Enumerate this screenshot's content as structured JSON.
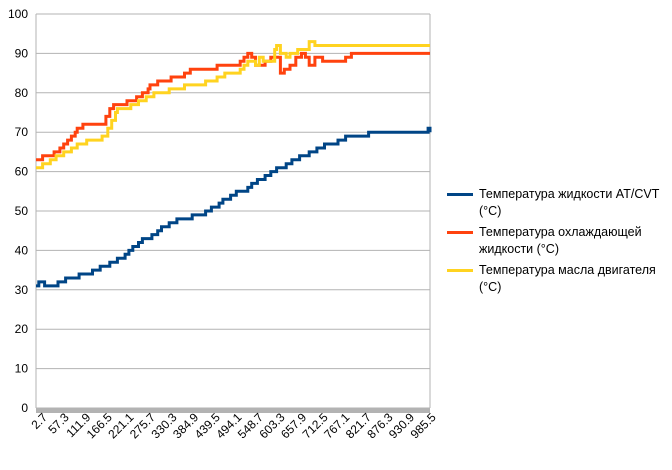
{
  "chart_data": {
    "type": "line",
    "title": "",
    "xlabel": "",
    "ylabel": "",
    "ylim": [
      0,
      100
    ],
    "y_ticks": [
      0,
      10,
      20,
      30,
      40,
      50,
      60,
      70,
      80,
      90,
      100
    ],
    "x_tick_labels": [
      "2.7",
      "57.3",
      "111.9",
      "166.5",
      "221.1",
      "275.7",
      "330.3",
      "384.9",
      "439.5",
      "494.1",
      "548.7",
      "603.3",
      "657.9",
      "712.5",
      "767.1",
      "821.7",
      "876.3",
      "930.9",
      "985.5"
    ],
    "xlim": [
      2.7,
      1030
    ],
    "grid": "horizontal",
    "legend_position": "right",
    "series": [
      {
        "name": "Температура жидкости AT/CVT (°C)",
        "color": "#004586",
        "points": [
          [
            2.7,
            31
          ],
          [
            10,
            32
          ],
          [
            25,
            31
          ],
          [
            60,
            32
          ],
          [
            80,
            33
          ],
          [
            115,
            34
          ],
          [
            150,
            35
          ],
          [
            170,
            36
          ],
          [
            195,
            37
          ],
          [
            215,
            38
          ],
          [
            235,
            39
          ],
          [
            245,
            40
          ],
          [
            255,
            41
          ],
          [
            270,
            42
          ],
          [
            280,
            43
          ],
          [
            305,
            44
          ],
          [
            320,
            45
          ],
          [
            330,
            46
          ],
          [
            350,
            47
          ],
          [
            370,
            48
          ],
          [
            410,
            49
          ],
          [
            445,
            50
          ],
          [
            460,
            51
          ],
          [
            480,
            52
          ],
          [
            490,
            53
          ],
          [
            510,
            54
          ],
          [
            525,
            55
          ],
          [
            555,
            56
          ],
          [
            565,
            57
          ],
          [
            580,
            58
          ],
          [
            600,
            59
          ],
          [
            615,
            60
          ],
          [
            630,
            61
          ],
          [
            655,
            62
          ],
          [
            670,
            63
          ],
          [
            690,
            64
          ],
          [
            715,
            65
          ],
          [
            735,
            66
          ],
          [
            755,
            67
          ],
          [
            790,
            68
          ],
          [
            810,
            69
          ],
          [
            870,
            70
          ],
          [
            935,
            70
          ],
          [
            1025,
            71
          ],
          [
            1030,
            70
          ]
        ]
      },
      {
        "name": "Температура охлаждающей жидкости (°C)",
        "color": "#ff420e",
        "points": [
          [
            2.7,
            63
          ],
          [
            20,
            64
          ],
          [
            50,
            65
          ],
          [
            65,
            66
          ],
          [
            75,
            67
          ],
          [
            85,
            68
          ],
          [
            95,
            69
          ],
          [
            105,
            70
          ],
          [
            110,
            71
          ],
          [
            125,
            72
          ],
          [
            170,
            72
          ],
          [
            185,
            74
          ],
          [
            195,
            76
          ],
          [
            205,
            77
          ],
          [
            240,
            78
          ],
          [
            265,
            79
          ],
          [
            280,
            80
          ],
          [
            295,
            81
          ],
          [
            300,
            82
          ],
          [
            320,
            83
          ],
          [
            355,
            84
          ],
          [
            390,
            85
          ],
          [
            405,
            86
          ],
          [
            440,
            86
          ],
          [
            475,
            87
          ],
          [
            525,
            87
          ],
          [
            535,
            88
          ],
          [
            545,
            89
          ],
          [
            555,
            90
          ],
          [
            565,
            89
          ],
          [
            575,
            87
          ],
          [
            590,
            87
          ],
          [
            600,
            88
          ],
          [
            615,
            89
          ],
          [
            625,
            89
          ],
          [
            640,
            85
          ],
          [
            650,
            86
          ],
          [
            665,
            87
          ],
          [
            680,
            89
          ],
          [
            695,
            90
          ],
          [
            705,
            89
          ],
          [
            715,
            87
          ],
          [
            730,
            89
          ],
          [
            750,
            88
          ],
          [
            770,
            88
          ],
          [
            790,
            88
          ],
          [
            810,
            89
          ],
          [
            825,
            90
          ],
          [
            1030,
            90
          ]
        ]
      },
      {
        "name": "Температура масла двигателя (°C)",
        "color": "#ffd320",
        "points": [
          [
            2.7,
            61
          ],
          [
            20,
            62
          ],
          [
            40,
            63
          ],
          [
            55,
            64
          ],
          [
            75,
            65
          ],
          [
            95,
            66
          ],
          [
            110,
            67
          ],
          [
            135,
            68
          ],
          [
            160,
            68
          ],
          [
            175,
            69
          ],
          [
            190,
            71
          ],
          [
            200,
            73
          ],
          [
            210,
            75
          ],
          [
            215,
            76
          ],
          [
            250,
            77
          ],
          [
            270,
            78
          ],
          [
            290,
            79
          ],
          [
            310,
            80
          ],
          [
            350,
            81
          ],
          [
            370,
            81
          ],
          [
            390,
            82
          ],
          [
            430,
            82
          ],
          [
            445,
            83
          ],
          [
            475,
            84
          ],
          [
            495,
            85
          ],
          [
            535,
            86
          ],
          [
            545,
            87
          ],
          [
            555,
            88
          ],
          [
            565,
            88
          ],
          [
            575,
            87
          ],
          [
            585,
            89
          ],
          [
            595,
            88
          ],
          [
            610,
            88
          ],
          [
            625,
            91
          ],
          [
            630,
            92
          ],
          [
            640,
            90
          ],
          [
            655,
            89
          ],
          [
            665,
            90
          ],
          [
            685,
            91
          ],
          [
            700,
            91
          ],
          [
            715,
            93
          ],
          [
            730,
            92
          ],
          [
            1030,
            92
          ]
        ]
      }
    ]
  }
}
